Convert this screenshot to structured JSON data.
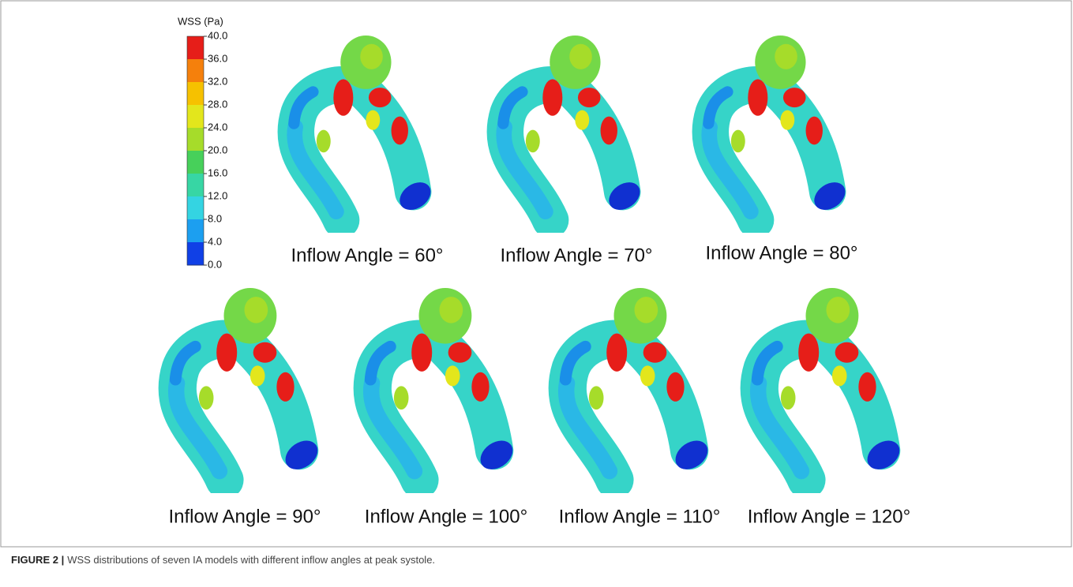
{
  "colorbar": {
    "title": "WSS (Pa)",
    "labels": [
      "40.0",
      "36.0",
      "32.0",
      "28.0",
      "24.0",
      "20.0",
      "16.0",
      "12.0",
      "8.0",
      "4.0",
      "0.0"
    ],
    "colors": [
      "#e61e19",
      "#f5800c",
      "#f6c100",
      "#e3e61c",
      "#a6dc2a",
      "#47d05a",
      "#37d6a4",
      "#34d4e2",
      "#1c9ff0",
      "#1040e6"
    ]
  },
  "panels": [
    {
      "label": "Inflow Angle = 60°"
    },
    {
      "label": "Inflow Angle = 70°"
    },
    {
      "label": "Inflow Angle = 80°"
    },
    {
      "label": "Inflow Angle = 90°"
    },
    {
      "label": "Inflow Angle = 100°"
    },
    {
      "label": "Inflow Angle = 110°"
    },
    {
      "label": "Inflow Angle = 120°"
    }
  ],
  "caption": {
    "label": "FIGURE 2 |",
    "text": "WSS distributions of seven IA models with different inflow angles at peak systole."
  }
}
